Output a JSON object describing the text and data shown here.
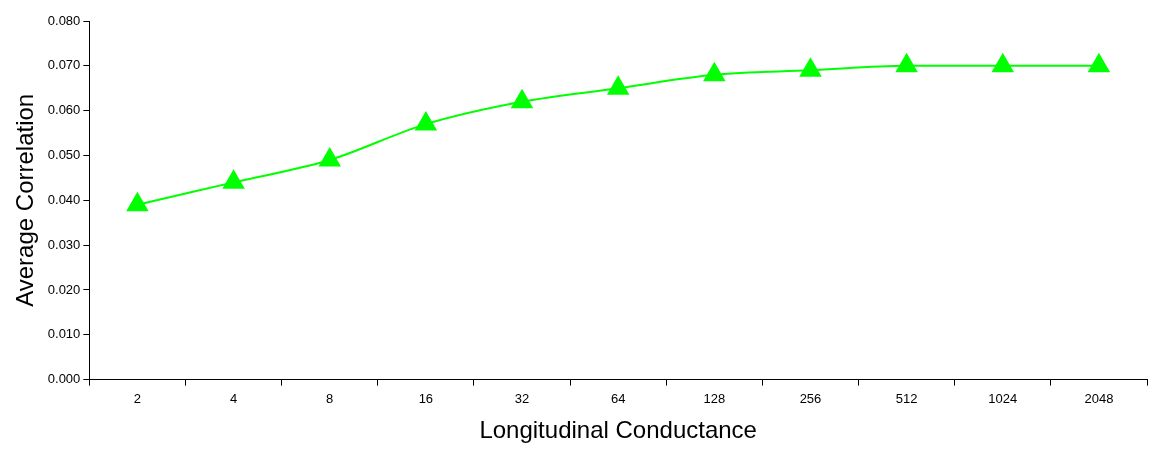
{
  "chart_data": {
    "type": "line",
    "xlabel": "Longitudinal Conductance",
    "ylabel": "Average Correlation",
    "categories": [
      "2",
      "4",
      "8",
      "16",
      "32",
      "64",
      "128",
      "256",
      "512",
      "1024",
      "2048"
    ],
    "series": [
      {
        "color": "#00ff00",
        "values": [
          0.039,
          0.044,
          0.049,
          0.057,
          0.062,
          0.065,
          0.068,
          0.069,
          0.07,
          0.07,
          0.07
        ]
      }
    ],
    "ylim": [
      0,
      0.08
    ],
    "yticks": [
      {
        "value": 0,
        "label": "0.000"
      },
      {
        "value": 0.01,
        "label": "0.010"
      },
      {
        "value": 0.02,
        "label": "0.020"
      },
      {
        "value": 0.03,
        "label": "0.030"
      },
      {
        "value": 0.04,
        "label": "0.040"
      },
      {
        "value": 0.05,
        "label": "0.050"
      },
      {
        "value": 0.06,
        "label": "0.060"
      },
      {
        "value": 0.07,
        "label": "0.070"
      },
      {
        "value": 0.08,
        "label": "0.080"
      }
    ],
    "marker": "triangle",
    "line_style": "solid",
    "grid": false,
    "legend": false
  }
}
